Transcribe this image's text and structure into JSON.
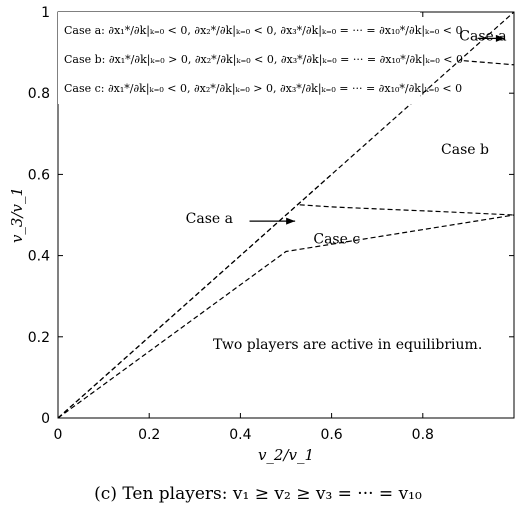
{
  "chart_data": {
    "type": "line",
    "title": "",
    "xlabel": "v_2/v_1",
    "ylabel": "v_3/v_1",
    "xlim": [
      0,
      1
    ],
    "ylim": [
      0,
      1
    ],
    "x_ticks": [
      "0",
      "0.2",
      "0.4",
      "0.6",
      "0.8",
      ""
    ],
    "y_ticks": [
      "0",
      "0.2",
      "0.4",
      "0.6",
      "0.8",
      "1"
    ],
    "grid": false,
    "line_style": "dashed",
    "series": [
      {
        "points": [
          [
            0,
            0
          ],
          [
            1,
            1
          ]
        ]
      },
      {
        "points": [
          [
            0,
            0
          ],
          [
            0.6,
            0.6
          ]
        ]
      },
      {
        "points": [
          [
            0,
            0
          ],
          [
            0.5,
            0.41
          ],
          [
            1,
            0.5
          ]
        ]
      },
      {
        "points": [
          [
            0.53,
            0.525
          ],
          [
            0.6,
            0.52
          ],
          [
            0.7,
            0.515
          ],
          [
            0.85,
            0.508
          ],
          [
            1,
            0.5
          ]
        ]
      },
      {
        "points": [
          [
            0.89,
            0.88
          ],
          [
            1,
            0.87
          ]
        ]
      }
    ],
    "legend_lines": [
      "Case a: ∂x₁*/∂k|ₖ₌₀ < 0, ∂x₂*/∂k|ₖ₌₀ < 0, ∂x₃*/∂k|ₖ₌₀ = ··· = ∂x₁₀*/∂k|ₖ₌₀ < 0",
      "Case b: ∂x₁*/∂k|ₖ₌₀ > 0, ∂x₂*/∂k|ₖ₌₀ < 0, ∂x₃*/∂k|ₖ₌₀ = ··· = ∂x₁₀*/∂k|ₖ₌₀ < 0",
      "Case c: ∂x₁*/∂k|ₖ₌₀ < 0, ∂x₂*/∂k|ₖ₌₀ > 0, ∂x₃*/∂k|ₖ₌₀ = ··· = ∂x₁₀*/∂k|ₖ₌₀ < 0"
    ],
    "annotations": [
      {
        "text": "Case a",
        "x": 0.88,
        "y": 0.93,
        "arrow_from": [
          0.92,
          0.935
        ],
        "arrow_to": [
          0.98,
          0.935
        ]
      },
      {
        "text": "Case b",
        "x": 0.84,
        "y": 0.65
      },
      {
        "text": "Case a",
        "x": 0.28,
        "y": 0.48,
        "arrow_from": [
          0.42,
          0.485
        ],
        "arrow_to": [
          0.52,
          0.485
        ]
      },
      {
        "text": "Case c",
        "x": 0.56,
        "y": 0.43
      },
      {
        "text": "Two players are active in equilibrium.",
        "x": 0.34,
        "y": 0.17
      }
    ]
  },
  "caption": "(c) Ten players: v₁ ≥ v₂ ≥ v₃ = ··· = v₁₀"
}
